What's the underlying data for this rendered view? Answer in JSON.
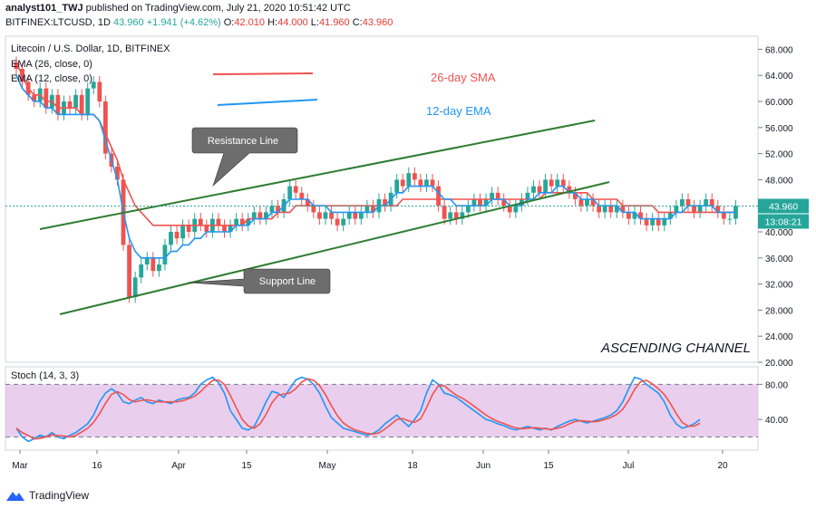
{
  "header": {
    "author": "analyst101_TWJ",
    "published": "published on TradingView.com, July 21, 2020 10:51:42 UTC",
    "symbol": "BITFINEX:LTCUSD, 1D",
    "last": "43.960",
    "change": "+1.941 (+4.62%)",
    "open_label": "O:",
    "open": "42.010",
    "high_label": "H:",
    "high": "44.000",
    "low_label": "L:",
    "low": "41.960",
    "close_label": "C:",
    "close": "43.960"
  },
  "legend": {
    "pair": "Litecoin / U.S. Dollar, 1D, BITFINEX",
    "ema26": "EMA (26, close, 0)",
    "ema12": "EMA (12, close, 0)"
  },
  "annotations": {
    "sma_label": "26-day SMA",
    "ema_label": "12-day EMA",
    "resistance": "Resistance Line",
    "support": "Support Line",
    "channel": "ASCENDING CHANNEL"
  },
  "price_badge": "43.960",
  "time_badge": "13:08:21",
  "stoch_label": "Stoch (14, 3, 3)",
  "footer": {
    "brand": "TradingView"
  },
  "colors": {
    "up": "#26a69a",
    "down": "#ef5350",
    "sma": "#ef5350",
    "ema": "#2196f3",
    "channel": "#2e7d32",
    "stoch_k": "#2196f3",
    "stoch_d": "#ef5350",
    "stoch_bg": "#e1bee7"
  },
  "chart_data": [
    {
      "type": "candlestick",
      "y_axis_ticks": [
        "68.000",
        "64.000",
        "60.000",
        "56.000",
        "52.000",
        "48.000",
        "44.000",
        "40.000",
        "36.000",
        "32.000",
        "28.000",
        "24.000",
        "20.000"
      ],
      "x_axis_ticks": [
        "Mar",
        "16",
        "Apr",
        "15",
        "May",
        "18",
        "Jun",
        "15",
        "Jul",
        "20"
      ],
      "ylim": [
        20,
        70
      ],
      "close": [
        65,
        63,
        61,
        60,
        62,
        59,
        61,
        58,
        60,
        59,
        61,
        58,
        62,
        63,
        60,
        52,
        50,
        48,
        38,
        30,
        33,
        35,
        36,
        34,
        35,
        38,
        40,
        39,
        41,
        40,
        42,
        41,
        40,
        42,
        41,
        40,
        41,
        42,
        41,
        42,
        43,
        42,
        43,
        44,
        43,
        45,
        47,
        46,
        45,
        44,
        43,
        42,
        43,
        42,
        41,
        42,
        43,
        42,
        43,
        44,
        43,
        45,
        44,
        46,
        48,
        47,
        49,
        48,
        47,
        48,
        47,
        44,
        42,
        43,
        42,
        43,
        44,
        45,
        44,
        45,
        46,
        45,
        44,
        43,
        44,
        45,
        46,
        47,
        46,
        48,
        47,
        48,
        47,
        46,
        45,
        44,
        45,
        44,
        43,
        44,
        43,
        44,
        43,
        42,
        43,
        42,
        41,
        42,
        41,
        42,
        43,
        44,
        45,
        44,
        43,
        44,
        45,
        44,
        43,
        42,
        42,
        44
      ],
      "sma26": [
        66,
        64,
        62,
        61,
        61,
        60,
        60,
        59,
        59,
        59,
        59,
        58,
        58,
        58,
        57,
        55,
        53,
        51,
        48,
        46,
        44,
        43,
        42,
        41,
        41,
        41,
        41,
        41,
        41,
        41,
        41,
        41,
        41,
        41,
        41,
        41,
        41,
        41,
        41,
        42,
        42,
        42,
        42,
        42,
        43,
        43,
        43,
        44,
        44,
        44,
        44,
        44,
        44,
        44,
        44,
        44,
        44,
        44,
        44,
        44,
        44,
        44,
        44,
        44,
        44,
        45,
        45,
        45,
        45,
        45,
        45,
        45,
        45,
        45,
        45,
        45,
        45,
        45,
        45,
        45,
        45,
        45,
        45,
        45,
        45,
        45,
        45,
        45,
        45,
        46,
        46,
        46,
        46,
        46,
        46,
        46,
        46,
        45,
        45,
        45,
        45,
        45,
        44,
        44,
        44,
        44,
        44,
        44,
        43,
        43,
        43,
        43,
        43,
        43,
        43,
        43,
        43,
        43,
        43,
        43,
        43,
        43
      ],
      "ema12": [
        64,
        62,
        61,
        60,
        60,
        59,
        59,
        58,
        58,
        58,
        58,
        58,
        58,
        58,
        57,
        54,
        51,
        48,
        43,
        39,
        37,
        36,
        36,
        36,
        36,
        36,
        37,
        37,
        38,
        38,
        39,
        39,
        40,
        40,
        40,
        40,
        40,
        41,
        41,
        41,
        42,
        42,
        42,
        43,
        43,
        44,
        45,
        45,
        45,
        45,
        44,
        44,
        44,
        43,
        43,
        43,
        43,
        43,
        43,
        43,
        43,
        44,
        44,
        45,
        46,
        46,
        47,
        47,
        47,
        47,
        47,
        46,
        45,
        45,
        44,
        44,
        44,
        44,
        44,
        44,
        45,
        45,
        45,
        44,
        44,
        44,
        45,
        45,
        46,
        46,
        46,
        47,
        47,
        46,
        46,
        45,
        45,
        45,
        44,
        44,
        44,
        44,
        43,
        43,
        43,
        42,
        42,
        42,
        42,
        42,
        42,
        43,
        43,
        44,
        44,
        44,
        44,
        44,
        43,
        43,
        43,
        43
      ]
    },
    {
      "type": "line",
      "name": "Stoch (14, 3, 3)",
      "y_axis_ticks": [
        "80.00",
        "40.00"
      ],
      "ylim": [
        5,
        100
      ],
      "bands": [
        80,
        20
      ],
      "k": [
        30,
        20,
        15,
        18,
        22,
        20,
        25,
        20,
        18,
        22,
        25,
        30,
        35,
        45,
        60,
        70,
        75,
        70,
        60,
        58,
        62,
        65,
        60,
        58,
        62,
        60,
        58,
        62,
        64,
        65,
        70,
        80,
        85,
        88,
        82,
        70,
        50,
        40,
        30,
        28,
        32,
        45,
        60,
        72,
        70,
        65,
        75,
        85,
        88,
        86,
        80,
        70,
        55,
        42,
        36,
        30,
        28,
        26,
        24,
        22,
        24,
        28,
        35,
        40,
        45,
        38,
        32,
        40,
        50,
        70,
        85,
        80,
        70,
        68,
        65,
        60,
        55,
        50,
        45,
        40,
        38,
        35,
        33,
        30,
        28,
        30,
        32,
        30,
        28,
        30,
        28,
        32,
        35,
        38,
        40,
        38,
        36,
        38,
        40,
        42,
        45,
        50,
        60,
        75,
        88,
        86,
        80,
        75,
        70,
        60,
        45,
        35,
        30,
        32,
        35,
        40
      ]
    }
  ]
}
